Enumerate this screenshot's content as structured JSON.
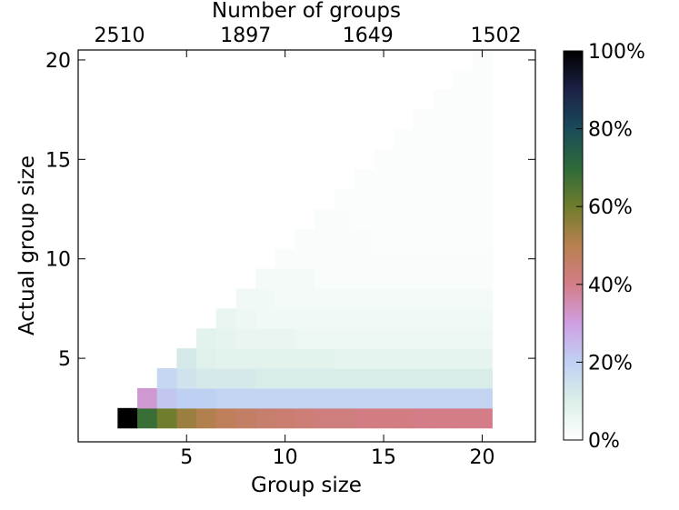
{
  "chart_data": {
    "type": "heatmap",
    "title": "",
    "xlabel": "Group size",
    "ylabel": "Actual group size",
    "x2label": "Number of groups",
    "xlim": [
      -0.5,
      22.7
    ],
    "ylim": [
      0.8,
      20.5
    ],
    "x_ticks": [
      5,
      10,
      15,
      20
    ],
    "y_ticks": [
      5,
      10,
      15,
      20
    ],
    "x2_ticks": [
      {
        "at": 1.6,
        "label": "2510"
      },
      {
        "at": 8.0,
        "label": "1897"
      },
      {
        "at": 14.2,
        "label": "1649"
      },
      {
        "at": 20.7,
        "label": "1502"
      }
    ],
    "grid": false,
    "colormap": "cubehelix_r",
    "colorbar": {
      "min": 0,
      "max": 100,
      "tick_labels": [
        "0%",
        "20%",
        "40%",
        "60%",
        "80%",
        "100%"
      ]
    },
    "rows_description": "for each group size x (2..20), percentage of groups whose actual size is y (2..x)",
    "cells": [
      {
        "x": 2,
        "y": [
          [
            2,
            100
          ]
        ]
      },
      {
        "x": 3,
        "y": [
          [
            2,
            68
          ],
          [
            3,
            32
          ]
        ]
      },
      {
        "x": 4,
        "y": [
          [
            2,
            60
          ],
          [
            3,
            22
          ],
          [
            4,
            18
          ]
        ]
      },
      {
        "x": 5,
        "y": [
          [
            2,
            54
          ],
          [
            3,
            20
          ],
          [
            4,
            14
          ],
          [
            5,
            12
          ]
        ]
      },
      {
        "x": 6,
        "y": [
          [
            2,
            51
          ],
          [
            3,
            20
          ],
          [
            4,
            12
          ],
          [
            5,
            9
          ],
          [
            6,
            8
          ]
        ]
      },
      {
        "x": 7,
        "y": [
          [
            2,
            48
          ],
          [
            3,
            19
          ],
          [
            4,
            12
          ],
          [
            5,
            8
          ],
          [
            6,
            7
          ],
          [
            7,
            6
          ]
        ]
      },
      {
        "x": 8,
        "y": [
          [
            2,
            46
          ],
          [
            3,
            19
          ],
          [
            4,
            12
          ],
          [
            5,
            8
          ],
          [
            6,
            6
          ],
          [
            7,
            5
          ],
          [
            8,
            4
          ]
        ]
      },
      {
        "x": 9,
        "y": [
          [
            2,
            45
          ],
          [
            3,
            19
          ],
          [
            4,
            11
          ],
          [
            5,
            8
          ],
          [
            6,
            6
          ],
          [
            7,
            4
          ],
          [
            8,
            4
          ],
          [
            9,
            3
          ]
        ]
      },
      {
        "x": 10,
        "y": [
          [
            2,
            44
          ],
          [
            3,
            19
          ],
          [
            4,
            11
          ],
          [
            5,
            8
          ],
          [
            6,
            6
          ],
          [
            7,
            4
          ],
          [
            8,
            3
          ],
          [
            9,
            3
          ],
          [
            10,
            2
          ]
        ]
      },
      {
        "x": 11,
        "y": [
          [
            2,
            43
          ],
          [
            3,
            19
          ],
          [
            4,
            11
          ],
          [
            5,
            8
          ],
          [
            6,
            5
          ],
          [
            7,
            4
          ],
          [
            8,
            3
          ],
          [
            9,
            3
          ],
          [
            10,
            2
          ],
          [
            11,
            2
          ]
        ]
      },
      {
        "x": 12,
        "y": [
          [
            2,
            42
          ],
          [
            3,
            19
          ],
          [
            4,
            11
          ],
          [
            5,
            8
          ],
          [
            6,
            5
          ],
          [
            7,
            4
          ],
          [
            8,
            3
          ],
          [
            9,
            2
          ],
          [
            10,
            2
          ],
          [
            11,
            2
          ],
          [
            12,
            2
          ]
        ]
      },
      {
        "x": 13,
        "y": [
          [
            2,
            42
          ],
          [
            3,
            19
          ],
          [
            4,
            11
          ],
          [
            5,
            7
          ],
          [
            6,
            5
          ],
          [
            7,
            4
          ],
          [
            8,
            3
          ],
          [
            9,
            2
          ],
          [
            10,
            2
          ],
          [
            11,
            2
          ],
          [
            12,
            2
          ],
          [
            13,
            1
          ]
        ]
      },
      {
        "x": 14,
        "y": [
          [
            2,
            41
          ],
          [
            3,
            19
          ],
          [
            4,
            11
          ],
          [
            5,
            7
          ],
          [
            6,
            5
          ],
          [
            7,
            4
          ],
          [
            8,
            3
          ],
          [
            9,
            2
          ],
          [
            10,
            2
          ],
          [
            11,
            2
          ],
          [
            12,
            1
          ],
          [
            13,
            1
          ],
          [
            14,
            1
          ]
        ]
      },
      {
        "x": 15,
        "y": [
          [
            2,
            41
          ],
          [
            3,
            19
          ],
          [
            4,
            11
          ],
          [
            5,
            7
          ],
          [
            6,
            5
          ],
          [
            7,
            4
          ],
          [
            8,
            3
          ],
          [
            9,
            2
          ],
          [
            10,
            2
          ],
          [
            11,
            1
          ],
          [
            12,
            1
          ],
          [
            13,
            1
          ],
          [
            14,
            1
          ],
          [
            15,
            1
          ]
        ]
      },
      {
        "x": 16,
        "y": [
          [
            2,
            41
          ],
          [
            3,
            19
          ],
          [
            4,
            11
          ],
          [
            5,
            7
          ],
          [
            6,
            5
          ],
          [
            7,
            4
          ],
          [
            8,
            3
          ],
          [
            9,
            2
          ],
          [
            10,
            2
          ],
          [
            11,
            1
          ],
          [
            12,
            1
          ],
          [
            13,
            1
          ],
          [
            14,
            1
          ],
          [
            15,
            1
          ],
          [
            16,
            1
          ]
        ]
      },
      {
        "x": 17,
        "y": [
          [
            2,
            40
          ],
          [
            3,
            19
          ],
          [
            4,
            11
          ],
          [
            5,
            7
          ],
          [
            6,
            5
          ],
          [
            7,
            4
          ],
          [
            8,
            3
          ],
          [
            9,
            2
          ],
          [
            10,
            2
          ],
          [
            11,
            1
          ],
          [
            12,
            1
          ],
          [
            13,
            1
          ],
          [
            14,
            1
          ],
          [
            15,
            1
          ],
          [
            16,
            1
          ],
          [
            17,
            1
          ]
        ]
      },
      {
        "x": 18,
        "y": [
          [
            2,
            40
          ],
          [
            3,
            19
          ],
          [
            4,
            11
          ],
          [
            5,
            7
          ],
          [
            6,
            5
          ],
          [
            7,
            4
          ],
          [
            8,
            3
          ],
          [
            9,
            2
          ],
          [
            10,
            2
          ],
          [
            11,
            1
          ],
          [
            12,
            1
          ],
          [
            13,
            1
          ],
          [
            14,
            1
          ],
          [
            15,
            1
          ],
          [
            16,
            1
          ],
          [
            17,
            1
          ],
          [
            18,
            1
          ]
        ]
      },
      {
        "x": 19,
        "y": [
          [
            2,
            40
          ],
          [
            3,
            19
          ],
          [
            4,
            11
          ],
          [
            5,
            7
          ],
          [
            6,
            5
          ],
          [
            7,
            4
          ],
          [
            8,
            3
          ],
          [
            9,
            2
          ],
          [
            10,
            2
          ],
          [
            11,
            1
          ],
          [
            12,
            1
          ],
          [
            13,
            1
          ],
          [
            14,
            1
          ],
          [
            15,
            1
          ],
          [
            16,
            1
          ],
          [
            17,
            1
          ],
          [
            18,
            1
          ],
          [
            19,
            1
          ]
        ]
      },
      {
        "x": 20,
        "y": [
          [
            2,
            40
          ],
          [
            3,
            19
          ],
          [
            4,
            11
          ],
          [
            5,
            7
          ],
          [
            6,
            5
          ],
          [
            7,
            4
          ],
          [
            8,
            3
          ],
          [
            9,
            2
          ],
          [
            10,
            2
          ],
          [
            11,
            1
          ],
          [
            12,
            1
          ],
          [
            13,
            1
          ],
          [
            14,
            1
          ],
          [
            15,
            1
          ],
          [
            16,
            1
          ],
          [
            17,
            1
          ],
          [
            18,
            1
          ],
          [
            19,
            1
          ],
          [
            20,
            1
          ]
        ]
      }
    ]
  }
}
